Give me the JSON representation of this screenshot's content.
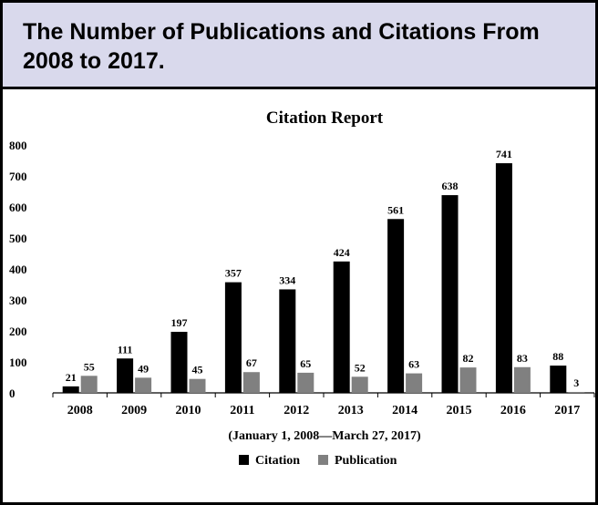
{
  "figure": {
    "header_title": "The Number of Publications and Citations From 2008 to 2017."
  },
  "chart_data": {
    "type": "bar",
    "title": "Citation Report",
    "subtitle": "(January 1, 2008—March 27, 2017)",
    "categories": [
      "2008",
      "2009",
      "2010",
      "2011",
      "2012",
      "2013",
      "2014",
      "2015",
      "2016",
      "2017"
    ],
    "series": [
      {
        "name": "Citation",
        "color": "#000000",
        "values": [
          21,
          111,
          197,
          357,
          334,
          424,
          561,
          638,
          741,
          88
        ]
      },
      {
        "name": "Publication",
        "color": "#808080",
        "values": [
          55,
          49,
          45,
          67,
          65,
          52,
          63,
          82,
          83,
          3
        ]
      }
    ],
    "ylim": [
      0,
      800
    ],
    "yticks": [
      0,
      100,
      200,
      300,
      400,
      500,
      600,
      700,
      800
    ],
    "grid": false,
    "legend": "bottom-center"
  }
}
